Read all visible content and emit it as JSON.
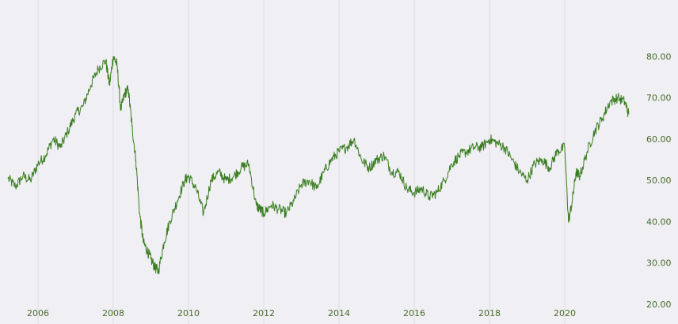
{
  "chart_data": {
    "type": "line",
    "title": "",
    "xlabel": "",
    "ylabel": "",
    "x_ticks": [
      "2006",
      "2008",
      "2010",
      "2012",
      "2014",
      "2016",
      "2018",
      "2020"
    ],
    "y_ticks": [
      "20.00",
      "30.00",
      "40.00",
      "50.00",
      "60.00",
      "70.00",
      "80.00"
    ],
    "xlim": [
      2005.2,
      2022.0
    ],
    "ylim": [
      20,
      86
    ],
    "grid": "vertical",
    "y_axis_side": "right",
    "series": [
      {
        "name": "",
        "color": "#3a7d1f",
        "x": [
          2005.2,
          2005.4,
          2005.6,
          2005.8,
          2006.0,
          2006.2,
          2006.4,
          2006.6,
          2006.8,
          2007.0,
          2007.2,
          2007.4,
          2007.6,
          2007.8,
          2007.9,
          2008.0,
          2008.1,
          2008.2,
          2008.3,
          2008.4,
          2008.5,
          2008.6,
          2008.7,
          2008.8,
          2008.9,
          2009.0,
          2009.1,
          2009.2,
          2009.35,
          2009.5,
          2009.7,
          2009.9,
          2010.0,
          2010.2,
          2010.4,
          2010.6,
          2010.8,
          2011.0,
          2011.2,
          2011.4,
          2011.6,
          2011.8,
          2011.9,
          2012.0,
          2012.2,
          2012.4,
          2012.6,
          2012.8,
          2013.0,
          2013.2,
          2013.4,
          2013.6,
          2013.8,
          2014.0,
          2014.2,
          2014.4,
          2014.6,
          2014.8,
          2015.0,
          2015.2,
          2015.4,
          2015.6,
          2015.8,
          2016.0,
          2016.2,
          2016.4,
          2016.6,
          2016.8,
          2017.0,
          2017.2,
          2017.4,
          2017.6,
          2017.8,
          2018.0,
          2018.2,
          2018.4,
          2018.6,
          2018.8,
          2019.0,
          2019.2,
          2019.4,
          2019.6,
          2019.8,
          2020.0,
          2020.1,
          2020.2,
          2020.3,
          2020.4,
          2020.6,
          2020.8,
          2021.0,
          2021.2,
          2021.4,
          2021.6,
          2021.7
        ],
        "values": [
          50.5,
          48.5,
          51,
          50,
          54,
          56,
          60,
          58,
          62,
          66,
          68,
          73,
          77,
          79,
          73,
          80,
          78,
          67,
          71,
          72,
          63,
          55,
          42,
          35,
          33,
          31,
          29,
          28,
          35,
          40,
          45,
          50,
          51,
          48,
          42,
          50,
          52,
          50,
          51,
          53,
          54,
          44,
          43,
          42,
          44,
          43,
          42,
          45,
          49,
          50,
          48,
          52,
          55,
          57,
          58,
          60,
          55,
          53,
          55,
          56,
          52,
          52,
          48,
          47,
          48,
          46,
          47,
          50,
          54,
          56,
          57,
          58,
          58,
          60,
          59,
          58,
          55,
          52,
          50,
          54,
          55,
          53,
          57,
          58,
          40,
          45,
          52,
          51,
          57,
          62,
          65,
          69,
          70,
          69,
          66
        ]
      }
    ]
  }
}
